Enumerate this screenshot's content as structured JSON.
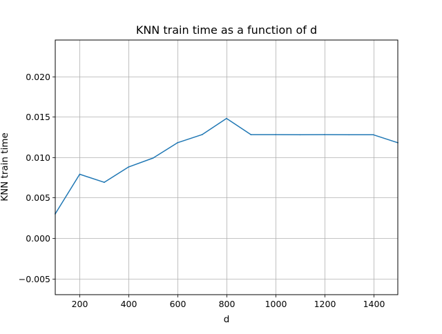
{
  "chart_data": {
    "type": "line",
    "title": "KNN train time as a function of d",
    "xlabel": "d",
    "ylabel": "KNN train time",
    "xlim": [
      100,
      1500
    ],
    "ylim": [
      -0.007,
      0.0245
    ],
    "grid": true,
    "xticks": [
      200,
      400,
      600,
      800,
      1000,
      1200,
      1400
    ],
    "xtick_labels": [
      "200",
      "400",
      "600",
      "800",
      "1000",
      "1200",
      "1400"
    ],
    "yticks": [
      -0.005,
      0.0,
      0.005,
      0.01,
      0.015,
      0.02
    ],
    "ytick_labels": [
      "−0.005",
      "0.000",
      "0.005",
      "0.010",
      "0.015",
      "0.020"
    ],
    "series": [
      {
        "color": "#1f77b4",
        "x": [
          100,
          200,
          300,
          400,
          500,
          600,
          700,
          800,
          900,
          1000,
          1100,
          1200,
          1300,
          1400,
          1500
        ],
        "y": [
          0.003,
          0.0079,
          0.0069,
          0.0088,
          0.0099,
          0.0118,
          0.0128,
          0.0148,
          0.0128,
          0.0128,
          0.01278,
          0.0128,
          0.01278,
          0.01278,
          0.0118
        ]
      }
    ]
  }
}
